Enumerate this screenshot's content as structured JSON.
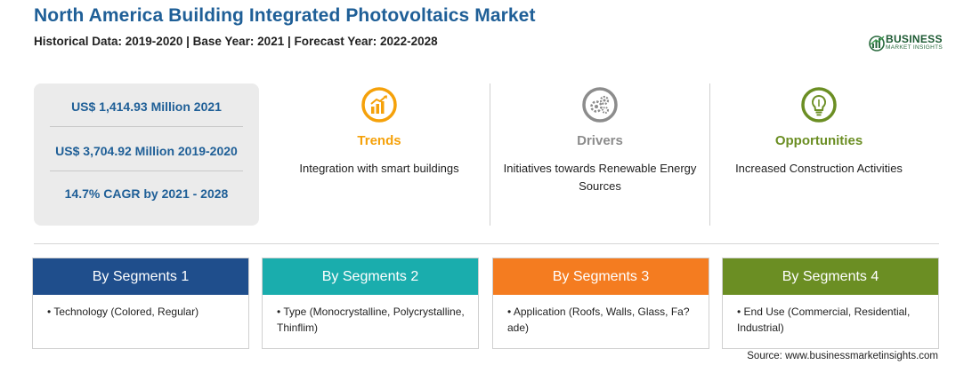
{
  "header": {
    "title": "North America Building Integrated Photovoltaics Market",
    "subtitle": "Historical Data: 2019-2020 | Base Year: 2021 | Forecast Year: 2022-2028"
  },
  "logo": {
    "line1": "BUSINESS",
    "line2": "MARKET INSIGHTS",
    "color": "#1d5a33"
  },
  "stats": [
    "US$ 1,414.93 Million 2021",
    "US$ 3,704.92 Million 2019-2020",
    "14.7% CAGR by 2021 - 2028"
  ],
  "cards": [
    {
      "title": "Trends",
      "description": "Integration with smart buildings",
      "icon": "chart-trend-icon",
      "color": "#f5a10a"
    },
    {
      "title": "Drivers",
      "description": "Initiatives towards Renewable Energy Sources",
      "icon": "gears-icon",
      "color": "#8c8c8c"
    },
    {
      "title": "Opportunities",
      "description": "Increased Construction Activities",
      "icon": "lightbulb-icon",
      "color": "#6b8e23"
    }
  ],
  "segments": [
    {
      "title": "By Segments 1",
      "items": [
        "Technology (Colored, Regular)"
      ],
      "color": "#1f4e8c"
    },
    {
      "title": "By Segments 2",
      "items": [
        "Type (Monocrystalline, Polycrystalline, Thinflim)"
      ],
      "color": "#1aadad"
    },
    {
      "title": "By Segments 3",
      "items": [
        "Application (Roofs, Walls, Glass, Fa?ade)"
      ],
      "color": "#f47c20"
    },
    {
      "title": "By Segments 4",
      "items": [
        "End Use (Commercial, Residential, Industrial)"
      ],
      "color": "#6b8e23"
    }
  ],
  "footer": {
    "source": "Source: www.businessmarketinsights.com"
  }
}
